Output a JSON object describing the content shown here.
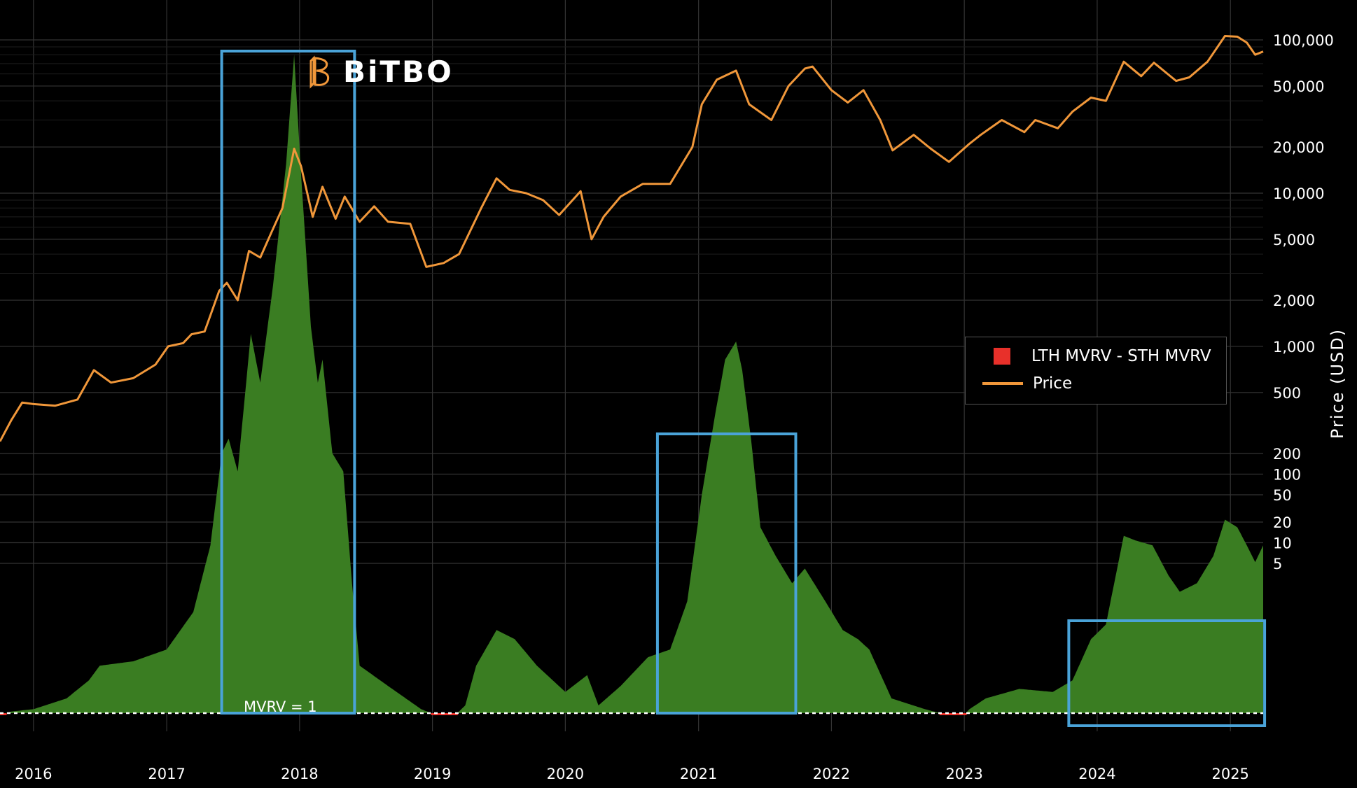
{
  "brand": {
    "name": "BiTBO"
  },
  "annotation": {
    "mvrv_label": "MVRV = 1"
  },
  "legend": {
    "items": [
      {
        "label": "LTH MVRV - STH MVRV",
        "color": "#e8302a",
        "style": "box"
      },
      {
        "label": "Price",
        "color": "#f0973a",
        "style": "line"
      }
    ]
  },
  "chart_data": {
    "type": "line",
    "x_axis": {
      "ticks": [
        "2016",
        "2017",
        "2018",
        "2019",
        "2020",
        "2021",
        "2022",
        "2023",
        "2024",
        "2025"
      ],
      "range": [
        "2015-10-01",
        "2025-04-01"
      ]
    },
    "y_axis_right": {
      "label": "Price (USD)",
      "scale": "log",
      "ticks": [
        "5",
        "10",
        "20",
        "50",
        "100",
        "200",
        "500",
        "1,000",
        "2,000",
        "5,000",
        "10,000",
        "20,000",
        "50,000",
        "100,000"
      ]
    },
    "baseline_value": 1,
    "colors": {
      "price": "#f0973a",
      "positive": "#3a7d22",
      "negative": "#e8302a",
      "highlight": "#4aa3d8",
      "grid": "#333333"
    },
    "series": [
      {
        "name": "Price",
        "points": [
          [
            "2015-10-01",
            240
          ],
          [
            "2015-11-01",
            330
          ],
          [
            "2015-12-01",
            430
          ],
          [
            "2016-01-01",
            420
          ],
          [
            "2016-03-01",
            410
          ],
          [
            "2016-05-01",
            450
          ],
          [
            "2016-06-15",
            700
          ],
          [
            "2016-08-01",
            580
          ],
          [
            "2016-10-01",
            620
          ],
          [
            "2016-12-01",
            760
          ],
          [
            "2017-01-05",
            1000
          ],
          [
            "2017-02-15",
            1050
          ],
          [
            "2017-03-10",
            1200
          ],
          [
            "2017-04-15",
            1250
          ],
          [
            "2017-05-25",
            2300
          ],
          [
            "2017-06-15",
            2600
          ],
          [
            "2017-07-15",
            2000
          ],
          [
            "2017-08-15",
            4200
          ],
          [
            "2017-09-15",
            3800
          ],
          [
            "2017-10-15",
            5500
          ],
          [
            "2017-11-15",
            8000
          ],
          [
            "2017-12-17",
            19500
          ],
          [
            "2018-01-05",
            15000
          ],
          [
            "2018-02-06",
            7000
          ],
          [
            "2018-03-05",
            11000
          ],
          [
            "2018-04-10",
            6800
          ],
          [
            "2018-05-05",
            9500
          ],
          [
            "2018-06-15",
            6500
          ],
          [
            "2018-07-25",
            8200
          ],
          [
            "2018-09-01",
            6500
          ],
          [
            "2018-11-01",
            6300
          ],
          [
            "2018-12-15",
            3300
          ],
          [
            "2019-02-01",
            3500
          ],
          [
            "2019-03-15",
            4000
          ],
          [
            "2019-05-15",
            8000
          ],
          [
            "2019-06-26",
            12500
          ],
          [
            "2019-08-01",
            10500
          ],
          [
            "2019-09-15",
            10000
          ],
          [
            "2019-11-01",
            9000
          ],
          [
            "2019-12-15",
            7200
          ],
          [
            "2020-02-12",
            10300
          ],
          [
            "2020-03-13",
            5000
          ],
          [
            "2020-04-15",
            7000
          ],
          [
            "2020-06-01",
            9500
          ],
          [
            "2020-08-01",
            11500
          ],
          [
            "2020-10-15",
            11500
          ],
          [
            "2020-12-15",
            20000
          ],
          [
            "2021-01-10",
            38000
          ],
          [
            "2021-02-20",
            55000
          ],
          [
            "2021-04-14",
            63000
          ],
          [
            "2021-05-20",
            38000
          ],
          [
            "2021-07-20",
            30000
          ],
          [
            "2021-09-05",
            50000
          ],
          [
            "2021-10-20",
            65000
          ],
          [
            "2021-11-10",
            67000
          ],
          [
            "2022-01-01",
            47000
          ],
          [
            "2022-02-15",
            39000
          ],
          [
            "2022-03-30",
            47000
          ],
          [
            "2022-05-15",
            30000
          ],
          [
            "2022-06-18",
            19000
          ],
          [
            "2022-08-15",
            24000
          ],
          [
            "2022-10-01",
            19500
          ],
          [
            "2022-11-20",
            16000
          ],
          [
            "2023-01-15",
            21000
          ],
          [
            "2023-02-15",
            24000
          ],
          [
            "2023-04-14",
            30000
          ],
          [
            "2023-06-15",
            25000
          ],
          [
            "2023-07-15",
            30000
          ],
          [
            "2023-09-15",
            26500
          ],
          [
            "2023-10-25",
            34000
          ],
          [
            "2023-12-15",
            42000
          ],
          [
            "2024-01-25",
            40000
          ],
          [
            "2024-03-14",
            72000
          ],
          [
            "2024-05-01",
            58000
          ],
          [
            "2024-06-05",
            71000
          ],
          [
            "2024-08-05",
            54000
          ],
          [
            "2024-09-10",
            57000
          ],
          [
            "2024-10-30",
            72000
          ],
          [
            "2024-12-17",
            106000
          ],
          [
            "2025-01-20",
            105000
          ],
          [
            "2025-02-15",
            96000
          ],
          [
            "2025-03-10",
            80000
          ],
          [
            "2025-04-01",
            84000
          ]
        ]
      },
      {
        "name": "LTH MVRV - STH MVRV",
        "points": [
          [
            "2015-10-01",
            0.98
          ],
          [
            "2015-11-01",
            1.02
          ],
          [
            "2016-01-01",
            1.05
          ],
          [
            "2016-04-01",
            1.2
          ],
          [
            "2016-06-01",
            1.5
          ],
          [
            "2016-07-01",
            1.8
          ],
          [
            "2016-10-01",
            1.9
          ],
          [
            "2017-01-01",
            2.2
          ],
          [
            "2017-03-15",
            3.5
          ],
          [
            "2017-05-01",
            8
          ],
          [
            "2017-06-01",
            25
          ],
          [
            "2017-06-20",
            30
          ],
          [
            "2017-07-15",
            20
          ],
          [
            "2017-08-20",
            110
          ],
          [
            "2017-09-15",
            60
          ],
          [
            "2017-10-20",
            200
          ],
          [
            "2017-11-25",
            900
          ],
          [
            "2017-12-17",
            3500
          ],
          [
            "2018-01-05",
            800
          ],
          [
            "2018-02-01",
            120
          ],
          [
            "2018-02-20",
            60
          ],
          [
            "2018-03-05",
            80
          ],
          [
            "2018-04-01",
            25
          ],
          [
            "2018-05-01",
            20
          ],
          [
            "2018-05-25",
            5
          ],
          [
            "2018-06-15",
            1.8
          ],
          [
            "2018-09-01",
            1.4
          ],
          [
            "2018-12-01",
            1.05
          ],
          [
            "2019-01-15",
            0.97
          ],
          [
            "2019-03-01",
            0.96
          ],
          [
            "2019-04-01",
            1.1
          ],
          [
            "2019-05-01",
            1.8
          ],
          [
            "2019-06-26",
            2.8
          ],
          [
            "2019-08-15",
            2.5
          ],
          [
            "2019-10-15",
            1.8
          ],
          [
            "2020-01-01",
            1.3
          ],
          [
            "2020-03-01",
            1.6
          ],
          [
            "2020-04-01",
            1.1
          ],
          [
            "2020-06-01",
            1.4
          ],
          [
            "2020-08-15",
            2
          ],
          [
            "2020-10-15",
            2.2
          ],
          [
            "2020-12-01",
            4
          ],
          [
            "2021-01-10",
            15
          ],
          [
            "2021-02-15",
            40
          ],
          [
            "2021-03-15",
            80
          ],
          [
            "2021-04-14",
            100
          ],
          [
            "2021-05-01",
            70
          ],
          [
            "2021-05-25",
            30
          ],
          [
            "2021-06-20",
            10
          ],
          [
            "2021-08-01",
            7
          ],
          [
            "2021-09-15",
            5
          ],
          [
            "2021-10-20",
            6
          ],
          [
            "2021-12-15",
            4
          ],
          [
            "2022-02-01",
            2.8
          ],
          [
            "2022-03-15",
            2.5
          ],
          [
            "2022-04-15",
            2.2
          ],
          [
            "2022-06-15",
            1.2
          ],
          [
            "2022-09-15",
            1.05
          ],
          [
            "2022-11-20",
            0.97
          ],
          [
            "2023-01-01",
            0.98
          ],
          [
            "2023-01-15",
            1.05
          ],
          [
            "2023-03-01",
            1.2
          ],
          [
            "2023-06-01",
            1.35
          ],
          [
            "2023-09-01",
            1.3
          ],
          [
            "2023-10-25",
            1.5
          ],
          [
            "2023-12-15",
            2.5
          ],
          [
            "2024-01-25",
            3
          ],
          [
            "2024-03-14",
            9
          ],
          [
            "2024-04-15",
            8.5
          ],
          [
            "2024-06-01",
            8
          ],
          [
            "2024-07-15",
            5.5
          ],
          [
            "2024-08-15",
            4.5
          ],
          [
            "2024-10-01",
            5
          ],
          [
            "2024-11-15",
            7
          ],
          [
            "2024-12-17",
            11
          ],
          [
            "2025-01-20",
            10
          ],
          [
            "2025-02-15",
            8
          ],
          [
            "2025-03-10",
            6.5
          ],
          [
            "2025-04-01",
            8
          ]
        ]
      }
    ],
    "highlight_boxes": [
      {
        "start": "2017-06-01",
        "end": "2018-06-01"
      },
      {
        "start": "2020-09-10",
        "end": "2021-09-25"
      },
      {
        "start": "2023-10-15",
        "end": "2025-04-05"
      }
    ]
  }
}
